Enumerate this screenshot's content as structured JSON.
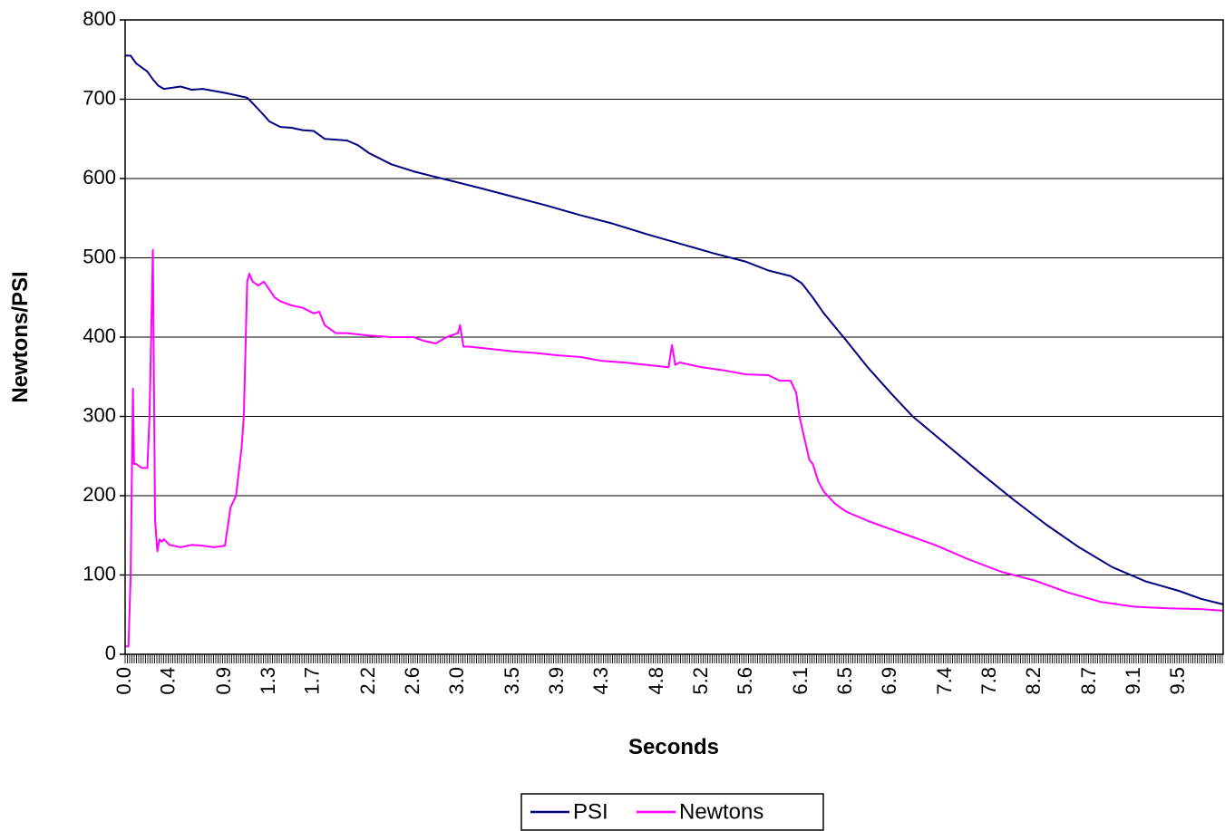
{
  "chart_data": {
    "type": "line",
    "xlabel": "Seconds",
    "ylabel": "Newtons/PSI",
    "xlim": [
      0.0,
      9.9
    ],
    "ylim": [
      0,
      800
    ],
    "y_ticks": [
      0,
      100,
      200,
      300,
      400,
      500,
      600,
      700,
      800
    ],
    "x_tick_labels": [
      "0.0",
      "0.4",
      "0.9",
      "1.3",
      "1.7",
      "2.2",
      "2.6",
      "3.0",
      "3.5",
      "3.9",
      "4.3",
      "4.8",
      "5.2",
      "5.6",
      "6.1",
      "6.5",
      "6.9",
      "7.4",
      "7.8",
      "8.2",
      "8.7",
      "9.1",
      "9.5"
    ],
    "x_tick_values": [
      0.0,
      0.4,
      0.9,
      1.3,
      1.7,
      2.2,
      2.6,
      3.0,
      3.5,
      3.9,
      4.3,
      4.8,
      5.2,
      5.6,
      6.1,
      6.5,
      6.9,
      7.4,
      7.8,
      8.2,
      8.7,
      9.1,
      9.5
    ],
    "grid": true,
    "legend": "bottom-center",
    "series": [
      {
        "name": "PSI",
        "color": "#000080",
        "x": [
          0.0,
          0.05,
          0.1,
          0.2,
          0.25,
          0.3,
          0.35,
          0.5,
          0.6,
          0.7,
          0.9,
          1.0,
          1.1,
          1.15,
          1.25,
          1.3,
          1.4,
          1.5,
          1.6,
          1.7,
          1.8,
          1.9,
          2.0,
          2.1,
          2.2,
          2.4,
          2.6,
          2.8,
          3.0,
          3.2,
          3.5,
          3.8,
          4.1,
          4.4,
          4.7,
          5.0,
          5.3,
          5.6,
          5.8,
          6.0,
          6.1,
          6.2,
          6.3,
          6.5,
          6.7,
          6.9,
          7.1,
          7.4,
          7.7,
          8.0,
          8.3,
          8.6,
          8.9,
          9.2,
          9.5,
          9.7,
          9.9
        ],
        "y": [
          755,
          755,
          745,
          735,
          725,
          717,
          713,
          716,
          712,
          713,
          708,
          705,
          702,
          695,
          680,
          672,
          665,
          664,
          661,
          660,
          650,
          649,
          648,
          642,
          632,
          618,
          609,
          602,
          595,
          588,
          577,
          566,
          554,
          543,
          530,
          518,
          506,
          495,
          484,
          477,
          468,
          450,
          430,
          396,
          361,
          330,
          300,
          265,
          230,
          196,
          164,
          135,
          110,
          92,
          80,
          70,
          63
        ]
      },
      {
        "name": "Newtons",
        "color": "#ff00ff",
        "x": [
          0.0,
          0.03,
          0.05,
          0.07,
          0.08,
          0.1,
          0.15,
          0.2,
          0.22,
          0.25,
          0.27,
          0.29,
          0.31,
          0.33,
          0.35,
          0.4,
          0.5,
          0.6,
          0.7,
          0.8,
          0.9,
          0.95,
          1.0,
          1.05,
          1.07,
          1.1,
          1.12,
          1.15,
          1.2,
          1.25,
          1.3,
          1.35,
          1.4,
          1.5,
          1.6,
          1.7,
          1.75,
          1.8,
          1.9,
          2.0,
          2.2,
          2.4,
          2.6,
          2.7,
          2.8,
          2.9,
          3.0,
          3.02,
          3.05,
          3.1,
          3.3,
          3.5,
          3.7,
          3.9,
          4.1,
          4.3,
          4.5,
          4.7,
          4.9,
          4.93,
          4.96,
          5.0,
          5.2,
          5.4,
          5.6,
          5.8,
          5.9,
          6.0,
          6.05,
          6.08,
          6.12,
          6.17,
          6.2,
          6.25,
          6.3,
          6.4,
          6.5,
          6.7,
          6.9,
          7.1,
          7.3,
          7.6,
          7.9,
          8.2,
          8.5,
          8.8,
          9.1,
          9.4,
          9.7,
          9.9
        ],
        "y": [
          10,
          10,
          100,
          335,
          240,
          240,
          235,
          235,
          300,
          510,
          170,
          130,
          145,
          142,
          145,
          138,
          135,
          138,
          137,
          135,
          137,
          185,
          200,
          260,
          300,
          470,
          480,
          470,
          465,
          470,
          460,
          450,
          445,
          440,
          437,
          430,
          432,
          415,
          405,
          405,
          402,
          400,
          400,
          395,
          392,
          400,
          405,
          415,
          388,
          388,
          385,
          382,
          380,
          377,
          375,
          370,
          368,
          365,
          362,
          390,
          365,
          368,
          362,
          358,
          353,
          352,
          345,
          345,
          330,
          300,
          275,
          245,
          240,
          218,
          205,
          190,
          180,
          168,
          158,
          148,
          138,
          120,
          104,
          93,
          78,
          66,
          60,
          58,
          57,
          55
        ]
      }
    ]
  }
}
